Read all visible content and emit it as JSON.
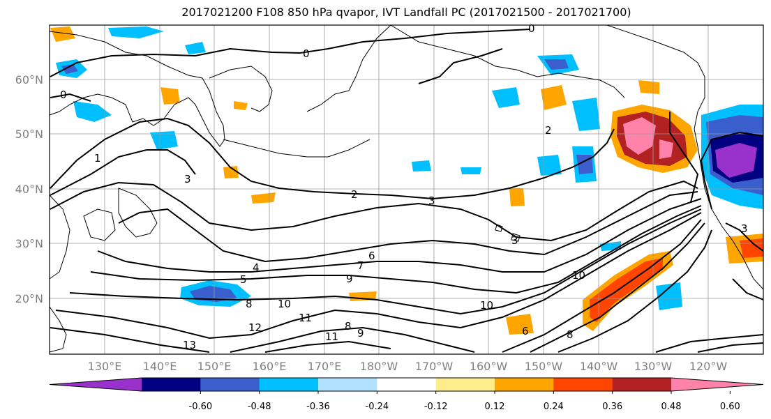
{
  "title": "2017021200 F108 850 hPa qvapor, IVT Landfall PC (2017021500 - 2017021700)",
  "lat_labels": [
    "60°N",
    "50°N",
    "40°N",
    "30°N",
    "20°N"
  ],
  "lon_labels": [
    "130°E",
    "140°E",
    "150°E",
    "160°E",
    "170°E",
    "180°W",
    "170°W",
    "160°W",
    "150°W",
    "140°W",
    "130°W",
    "120°W"
  ],
  "colorbar": {
    "colors": [
      "#9932cc",
      "#000080",
      "#3a5fcd",
      "#00bfff",
      "#b0e2ff",
      "#ffffff",
      "#ffec8b",
      "#ffa500",
      "#ff4500",
      "#b22222",
      "#ff82ab"
    ],
    "tick_labels": [
      "-0.60",
      "-0.48",
      "-0.36",
      "-0.24",
      "-0.12",
      "0.12",
      "0.24",
      "0.36",
      "0.48",
      "0.60"
    ],
    "ticks": [
      -0.6,
      -0.48,
      -0.36,
      -0.24,
      -0.12,
      0.12,
      0.24,
      0.36,
      0.48,
      0.6
    ]
  },
  "contour_labels": [
    {
      "text": "0"
    },
    {
      "text": "0"
    },
    {
      "text": "0"
    },
    {
      "text": "1"
    },
    {
      "text": "2"
    },
    {
      "text": "2"
    },
    {
      "text": "3"
    },
    {
      "text": "3"
    },
    {
      "text": "3"
    },
    {
      "text": "4"
    },
    {
      "text": "5"
    },
    {
      "text": "6"
    },
    {
      "text": "7"
    },
    {
      "text": "8"
    },
    {
      "text": "9"
    },
    {
      "text": "10"
    },
    {
      "text": "10"
    },
    {
      "text": "10"
    },
    {
      "text": "11"
    },
    {
      "text": "12"
    },
    {
      "text": "8"
    },
    {
      "text": "9"
    },
    {
      "text": "11"
    },
    {
      "text": "13"
    },
    {
      "text": "8"
    },
    {
      "text": "6"
    },
    {
      "text": "3"
    }
  ]
}
